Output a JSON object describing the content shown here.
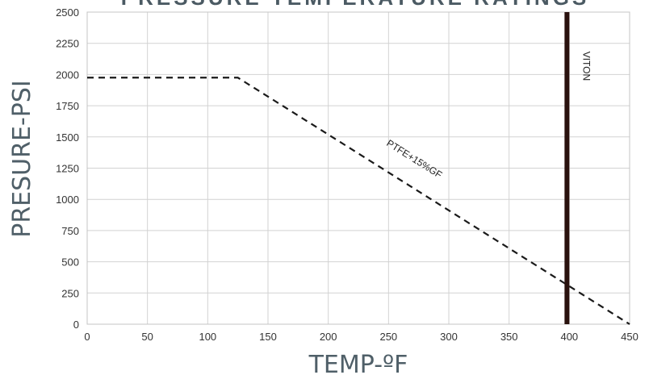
{
  "chart_data": {
    "type": "line",
    "title": "PRESSURE TEMPERATURE RATINGS",
    "xlabel": "TEMP-ºF",
    "ylabel": "PRESURE-PSI",
    "xlim": [
      0,
      450
    ],
    "ylim": [
      0,
      2500
    ],
    "xticks": [
      0,
      50,
      100,
      150,
      200,
      250,
      300,
      350,
      400,
      450
    ],
    "yticks": [
      0,
      250,
      500,
      750,
      1000,
      1250,
      1500,
      1750,
      2000,
      2250,
      2500
    ],
    "grid": true,
    "series": [
      {
        "name": "PTFE+15%GF",
        "style": "dashed",
        "color": "#1a1a1a",
        "points": [
          [
            0,
            1975
          ],
          [
            125,
            1975
          ],
          [
            450,
            0
          ]
        ]
      },
      {
        "name": "VITON",
        "style": "solid",
        "color": "#2a120e",
        "points": [
          [
            398,
            0
          ],
          [
            398,
            2500
          ]
        ]
      }
    ]
  }
}
